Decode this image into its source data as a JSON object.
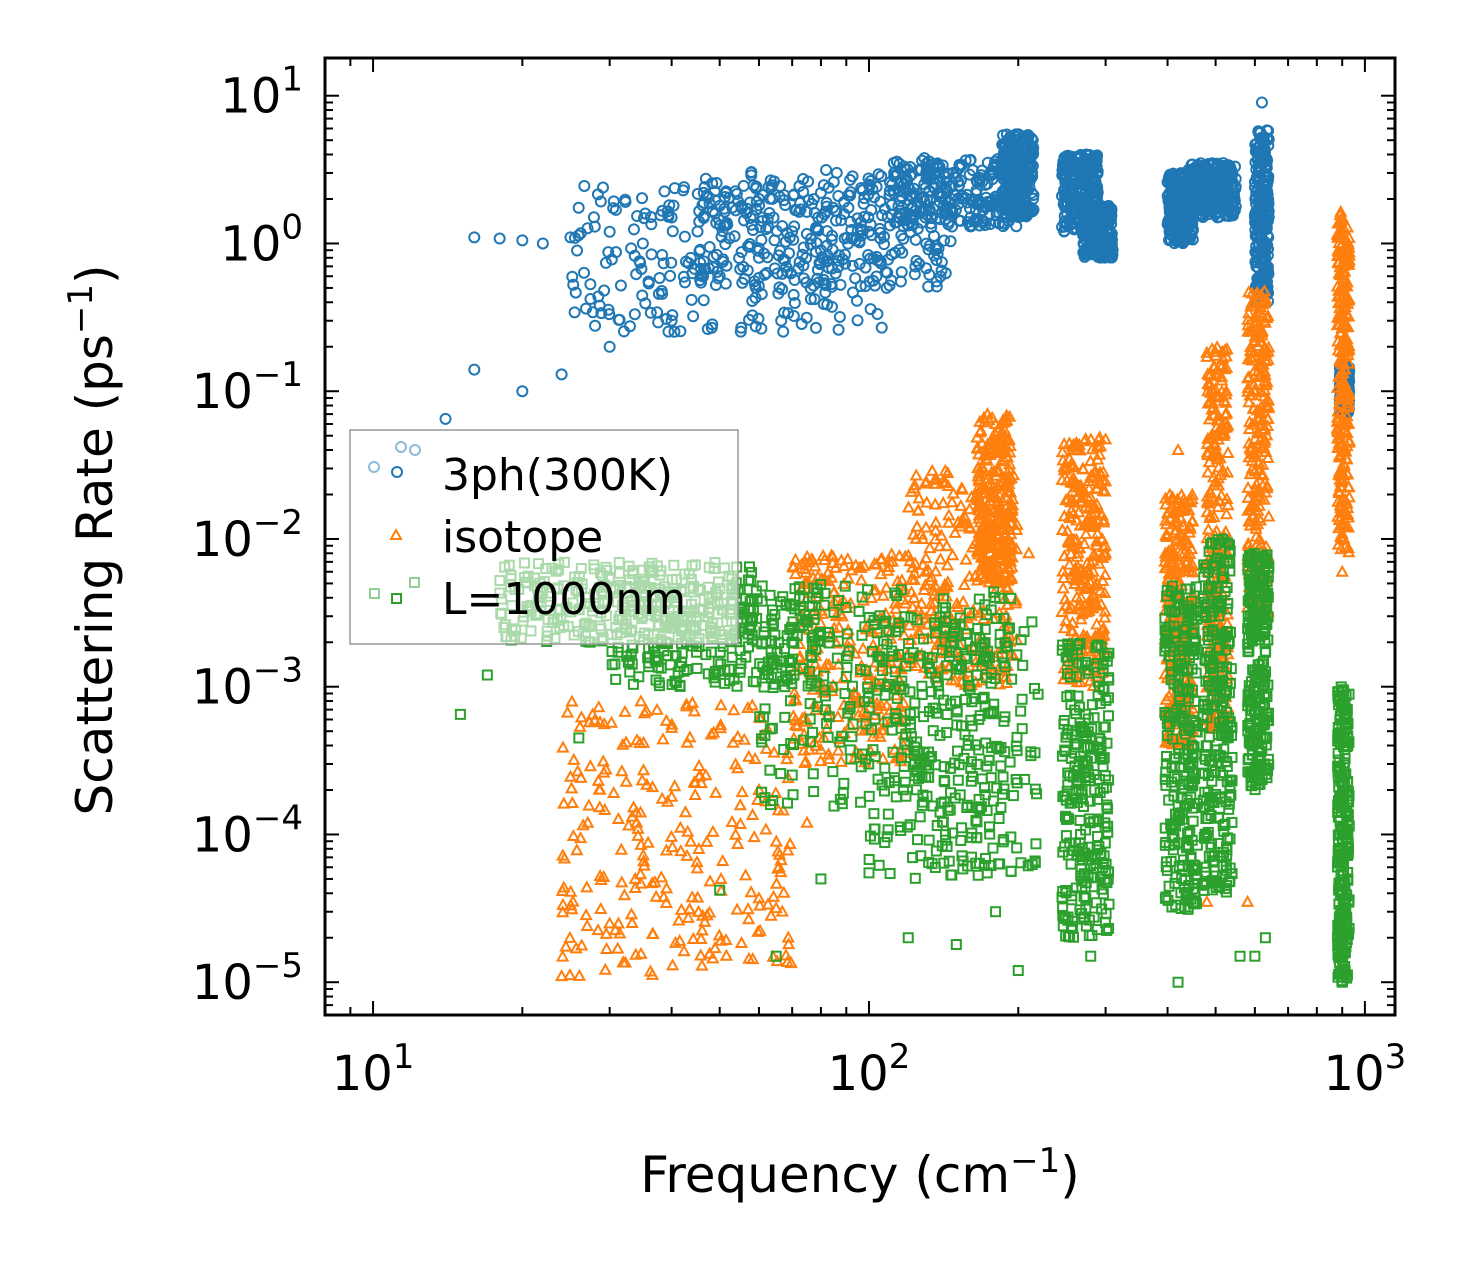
{
  "chart_data": {
    "type": "scatter",
    "xlabel_main": "Frequency (cm",
    "xlabel_sup": "−1",
    "xlabel_end": ")",
    "ylabel_main": "Scattering Rate (ps",
    "ylabel_sup": "−1",
    "ylabel_end": ")",
    "x_scale": "log",
    "y_scale": "log",
    "xlim": [
      8,
      1150
    ],
    "ylim": [
      6e-06,
      18
    ],
    "x_ticks": [
      {
        "base": "10",
        "exp": "1"
      },
      {
        "base": "10",
        "exp": "2"
      },
      {
        "base": "10",
        "exp": "3"
      }
    ],
    "y_ticks": [
      {
        "base": "10",
        "exp": "−5"
      },
      {
        "base": "10",
        "exp": "−4"
      },
      {
        "base": "10",
        "exp": "−3"
      },
      {
        "base": "10",
        "exp": "−2"
      },
      {
        "base": "10",
        "exp": "−1"
      },
      {
        "base": "10",
        "exp": "0"
      },
      {
        "base": "10",
        "exp": "1"
      }
    ],
    "legend_position": "center-left",
    "series": [
      {
        "name": "3ph(300K)",
        "marker": "circle",
        "color": "#1f77b4",
        "points": [
          [
            16,
            1.1
          ],
          [
            18,
            1.08
          ],
          [
            20,
            1.05
          ],
          [
            22,
            1.0
          ],
          [
            25,
            1.1
          ],
          [
            28,
            1.3
          ],
          [
            30,
            1.2
          ],
          [
            35,
            1.0
          ],
          [
            40,
            1.5
          ],
          [
            50,
            1.8
          ],
          [
            60,
            2.0
          ],
          [
            80,
            2.2
          ],
          [
            100,
            2.5
          ],
          [
            150,
            3.0
          ],
          [
            190,
            5.0
          ],
          [
            14,
            0.065
          ],
          [
            16,
            0.14
          ],
          [
            20,
            0.1
          ],
          [
            24,
            0.13
          ],
          [
            30,
            0.2
          ],
          [
            40,
            0.3
          ],
          [
            50,
            0.6
          ],
          [
            60,
            0.8
          ],
          [
            80,
            0.9
          ],
          [
            100,
            1.2
          ],
          [
            130,
            1.5
          ],
          [
            250,
            1.8
          ],
          [
            280,
            1.2
          ],
          [
            300,
            1.6
          ],
          [
            400,
            2.6
          ],
          [
            450,
            2.0
          ],
          [
            500,
            2.5
          ],
          [
            620,
            9.0
          ],
          [
            620,
            0.4
          ],
          [
            900,
            0.08
          ],
          [
            900,
            0.12
          ],
          [
            910,
            0.1
          ]
        ],
        "bands": [
          [
            25,
            110,
            0.25,
            2.5
          ],
          [
            45,
            150,
            0.5,
            3.2
          ],
          [
            110,
            200,
            1.3,
            3.8
          ],
          [
            185,
            215,
            1.5,
            5.5
          ],
          [
            245,
            290,
            1.2,
            4.0
          ],
          [
            270,
            310,
            0.8,
            1.8
          ],
          [
            400,
            450,
            1.0,
            3.0
          ],
          [
            440,
            550,
            1.5,
            3.5
          ],
          [
            600,
            640,
            0.4,
            6.0
          ],
          [
            890,
            930,
            0.07,
            0.15
          ]
        ]
      },
      {
        "name": "isotope",
        "marker": "triangle",
        "color": "#ff7f0e",
        "points": [
          [
            24,
            1.1e-05
          ],
          [
            30,
            2.5e-05
          ],
          [
            34,
            0.00012
          ],
          [
            40,
            0.00018
          ],
          [
            45,
            6.5e-05
          ],
          [
            60,
            0.0002
          ],
          [
            75,
            0.00012
          ],
          [
            100,
            0.0012
          ],
          [
            130,
            0.006
          ],
          [
            180,
            0.06
          ],
          [
            210,
            0.008
          ],
          [
            250,
            0.03
          ],
          [
            300,
            0.008
          ],
          [
            420,
            0.04
          ],
          [
            480,
            3.5e-05
          ],
          [
            510,
            0.15
          ],
          [
            580,
            3.5e-05
          ],
          [
            590,
            0.00045
          ],
          [
            620,
            0.25
          ],
          [
            900,
            1.5
          ],
          [
            900,
            0.006
          ]
        ],
        "bands": [
          [
            24,
            70,
            1.1e-05,
            0.0008
          ],
          [
            70,
            120,
            0.0003,
            0.008
          ],
          [
            120,
            200,
            0.001,
            0.03
          ],
          [
            165,
            195,
            0.005,
            0.07
          ],
          [
            245,
            300,
            0.001,
            0.05
          ],
          [
            395,
            450,
            0.0004,
            0.02
          ],
          [
            480,
            530,
            0.0005,
            0.2
          ],
          [
            580,
            640,
            0.003,
            0.5
          ],
          [
            880,
            930,
            0.008,
            1.8
          ]
        ]
      },
      {
        "name": "L=1000nm",
        "marker": "square",
        "color": "#2ca02c",
        "points": [
          [
            15,
            0.00065
          ],
          [
            17,
            0.0012
          ],
          [
            26,
            0.00045
          ],
          [
            50,
            4.2e-05
          ],
          [
            65,
            1.5e-05
          ],
          [
            80,
            5e-05
          ],
          [
            100,
            5.5e-05
          ],
          [
            120,
            2e-05
          ],
          [
            150,
            1.8e-05
          ],
          [
            180,
            3e-05
          ],
          [
            200,
            1.2e-05
          ],
          [
            280,
            1.5e-05
          ],
          [
            420,
            1e-05
          ],
          [
            560,
            1.5e-05
          ],
          [
            600,
            1.5e-05
          ],
          [
            630,
            2e-05
          ],
          [
            900,
            1e-05
          ]
        ],
        "bands": [
          [
            18,
            60,
            0.002,
            0.007
          ],
          [
            30,
            80,
            0.001,
            0.005
          ],
          [
            60,
            200,
            0.00015,
            0.005
          ],
          [
            100,
            220,
            5e-05,
            0.003
          ],
          [
            245,
            305,
            2e-05,
            0.002
          ],
          [
            395,
            460,
            3e-05,
            0.005
          ],
          [
            470,
            540,
            4e-05,
            0.01
          ],
          [
            580,
            640,
            0.0002,
            0.008
          ],
          [
            880,
            930,
            1e-05,
            0.001
          ]
        ]
      }
    ]
  }
}
